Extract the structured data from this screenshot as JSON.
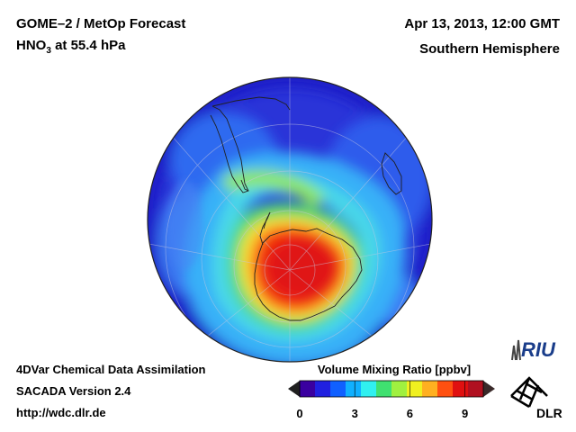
{
  "header": {
    "title_left": "GOME–2 / MetOp Forecast",
    "species": "HNO",
    "species_sub": "3",
    "level": " at 55.4 hPa",
    "title_right": "Apr 13, 2013, 12:00 GMT",
    "subtitle_right": "Southern Hemisphere"
  },
  "footer": {
    "line1": "4DVar Chemical Data Assimilation",
    "line2": "SACADA Version 2.4",
    "line3": "http://wdc.dlr.de"
  },
  "colorbar": {
    "title": "Volume Mixing Ratio [ppbv]",
    "min": 0,
    "max": 10,
    "ticks": [
      "0",
      "3",
      "6",
      "9"
    ],
    "tick_values": [
      0,
      3,
      6,
      9
    ],
    "colors": [
      "#3a00a0",
      "#2020e0",
      "#1060ff",
      "#10b0ff",
      "#30f0f0",
      "#40e070",
      "#a0f040",
      "#f0f020",
      "#ffb020",
      "#ff5010",
      "#e01010",
      "#b01020"
    ]
  },
  "logos": {
    "riu": "RIU",
    "dlr": "DLR"
  }
}
